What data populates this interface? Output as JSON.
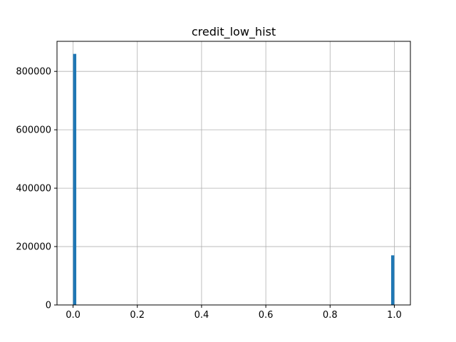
{
  "chart_data": {
    "type": "bar",
    "title": "credit_low_hist",
    "xlabel": "",
    "ylabel": "",
    "xlim": [
      -0.05,
      1.05
    ],
    "ylim": [
      0,
      903000
    ],
    "xticks": [
      0.0,
      0.2,
      0.4,
      0.6,
      0.8,
      1.0
    ],
    "xtick_labels": [
      "0.0",
      "0.2",
      "0.4",
      "0.6",
      "0.8",
      "1.0"
    ],
    "yticks": [
      0,
      200000,
      400000,
      600000,
      800000
    ],
    "ytick_labels": [
      "0",
      "200000",
      "400000",
      "600000",
      "800000"
    ],
    "grid": true,
    "bar_color": "#1f77b4",
    "bins": [
      {
        "x0": 0.0,
        "x1": 0.01,
        "value": 860000
      },
      {
        "x0": 0.99,
        "x1": 1.0,
        "value": 170000
      }
    ]
  }
}
